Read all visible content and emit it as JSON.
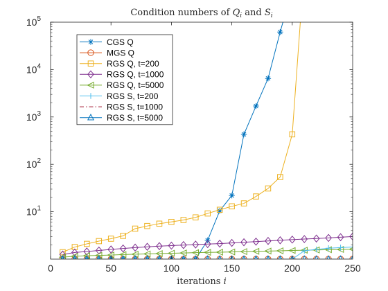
{
  "chart_data": {
    "type": "line",
    "title": "Condition numbers of Q_i and S_i",
    "title_parts": [
      "Condition numbers of ",
      "Q",
      "i",
      " and ",
      "S",
      "i"
    ],
    "xlabel": "iterations i",
    "xlabel_parts": [
      "iterations ",
      "i"
    ],
    "ylabel": "",
    "yscale": "log",
    "xlim": [
      0,
      250
    ],
    "ylim": [
      1,
      100000
    ],
    "x_ticks": [
      0,
      50,
      100,
      150,
      200,
      250
    ],
    "x_tick_labels": [
      "0",
      "50",
      "100",
      "150",
      "200",
      "250"
    ],
    "y_ticks": [
      10,
      100,
      1000,
      10000,
      100000
    ],
    "y_tick_labels": [
      {
        "base": "10",
        "exp": "1"
      },
      {
        "base": "10",
        "exp": "2"
      },
      {
        "base": "10",
        "exp": "3"
      },
      {
        "base": "10",
        "exp": "4"
      },
      {
        "base": "10",
        "exp": "5"
      }
    ],
    "grid": false,
    "legend_position": "top-left",
    "x": [
      10,
      20,
      30,
      40,
      50,
      60,
      70,
      80,
      90,
      100,
      110,
      120,
      130,
      140,
      150,
      160,
      170,
      180,
      190,
      200,
      210,
      220,
      230,
      240,
      250
    ],
    "series": [
      {
        "name": "CGS Q",
        "color": "#0072BD",
        "marker": "asterisk",
        "dash": "",
        "values": [
          1.0,
          1.0,
          1.0,
          1.0,
          1.0,
          1.0,
          1.0,
          1.0,
          1.0,
          1.0,
          1.0,
          1.0,
          2.5,
          10.5,
          22,
          430,
          1700,
          6500,
          62000,
          500000,
          null,
          null,
          null,
          null,
          null
        ]
      },
      {
        "name": "MGS Q",
        "color": "#D95319",
        "marker": "circle",
        "dash": "",
        "values": [
          1.0,
          1.0,
          1.0,
          1.0,
          1.0,
          1.0,
          1.0,
          1.0,
          1.0,
          1.0,
          1.0,
          1.0,
          1.0,
          1.0,
          1.0,
          1.0,
          1.0,
          1.0,
          1.0,
          1.0,
          1.0,
          1.0,
          1.0,
          1.0,
          1.0
        ]
      },
      {
        "name": "RGS Q, t=200",
        "color": "#EDB120",
        "marker": "square",
        "dash": "",
        "values": [
          1.4,
          1.8,
          2.1,
          2.4,
          2.7,
          3.1,
          4.4,
          5.0,
          5.6,
          6.1,
          6.7,
          7.6,
          9.2,
          11,
          13,
          15,
          21,
          31,
          54,
          430,
          1500000,
          null,
          null,
          null,
          null
        ]
      },
      {
        "name": "RGS Q, t=1000",
        "color": "#7E2F8E",
        "marker": "diamond",
        "dash": "",
        "values": [
          1.25,
          1.38,
          1.45,
          1.52,
          1.6,
          1.68,
          1.75,
          1.82,
          1.88,
          1.93,
          1.98,
          2.03,
          2.08,
          2.12,
          2.2,
          2.27,
          2.34,
          2.42,
          2.5,
          2.58,
          2.65,
          2.72,
          2.8,
          2.9,
          3.0
        ]
      },
      {
        "name": "RGS Q, t=5000",
        "color": "#77AC30",
        "marker": "triangle-left",
        "dash": "",
        "values": [
          1.1,
          1.15,
          1.18,
          1.2,
          1.22,
          1.25,
          1.27,
          1.29,
          1.31,
          1.33,
          1.35,
          1.37,
          1.39,
          1.4,
          1.42,
          1.44,
          1.46,
          1.48,
          1.5,
          1.52,
          1.54,
          1.56,
          1.58,
          1.6,
          1.62
        ]
      },
      {
        "name": "RGS S, t=200",
        "color": "#4DBEEE",
        "marker": "plus",
        "dash": "",
        "values": [
          1.0,
          1.0,
          1.0,
          1.0,
          1.0,
          1.0,
          1.0,
          1.0,
          1.0,
          1.0,
          1.0,
          1.0,
          1.0,
          1.0,
          1.0,
          1.0,
          1.0,
          1.0,
          1.0,
          1.0,
          1.5,
          1.6,
          1.7,
          1.75,
          1.8
        ]
      },
      {
        "name": "RGS S, t=1000",
        "color": "#A2142F",
        "marker": "none",
        "dash": "6,3,1.5,3",
        "values": [
          1.0,
          1.0,
          1.0,
          1.0,
          1.0,
          1.0,
          1.0,
          1.0,
          1.0,
          1.0,
          1.0,
          1.0,
          1.0,
          1.0,
          1.0,
          1.0,
          1.0,
          1.0,
          1.0,
          1.0,
          1.0,
          1.0,
          1.0,
          1.0,
          1.0
        ]
      },
      {
        "name": "RGS S, t=5000",
        "color": "#0072BD",
        "marker": "triangle-up",
        "dash": "",
        "values": [
          1.0,
          1.0,
          1.0,
          1.0,
          1.0,
          1.0,
          1.0,
          1.0,
          1.0,
          1.0,
          1.0,
          1.0,
          1.0,
          1.0,
          1.0,
          1.0,
          1.0,
          1.0,
          1.0,
          1.0,
          1.0,
          1.0,
          1.0,
          1.0,
          1.0
        ]
      }
    ]
  }
}
